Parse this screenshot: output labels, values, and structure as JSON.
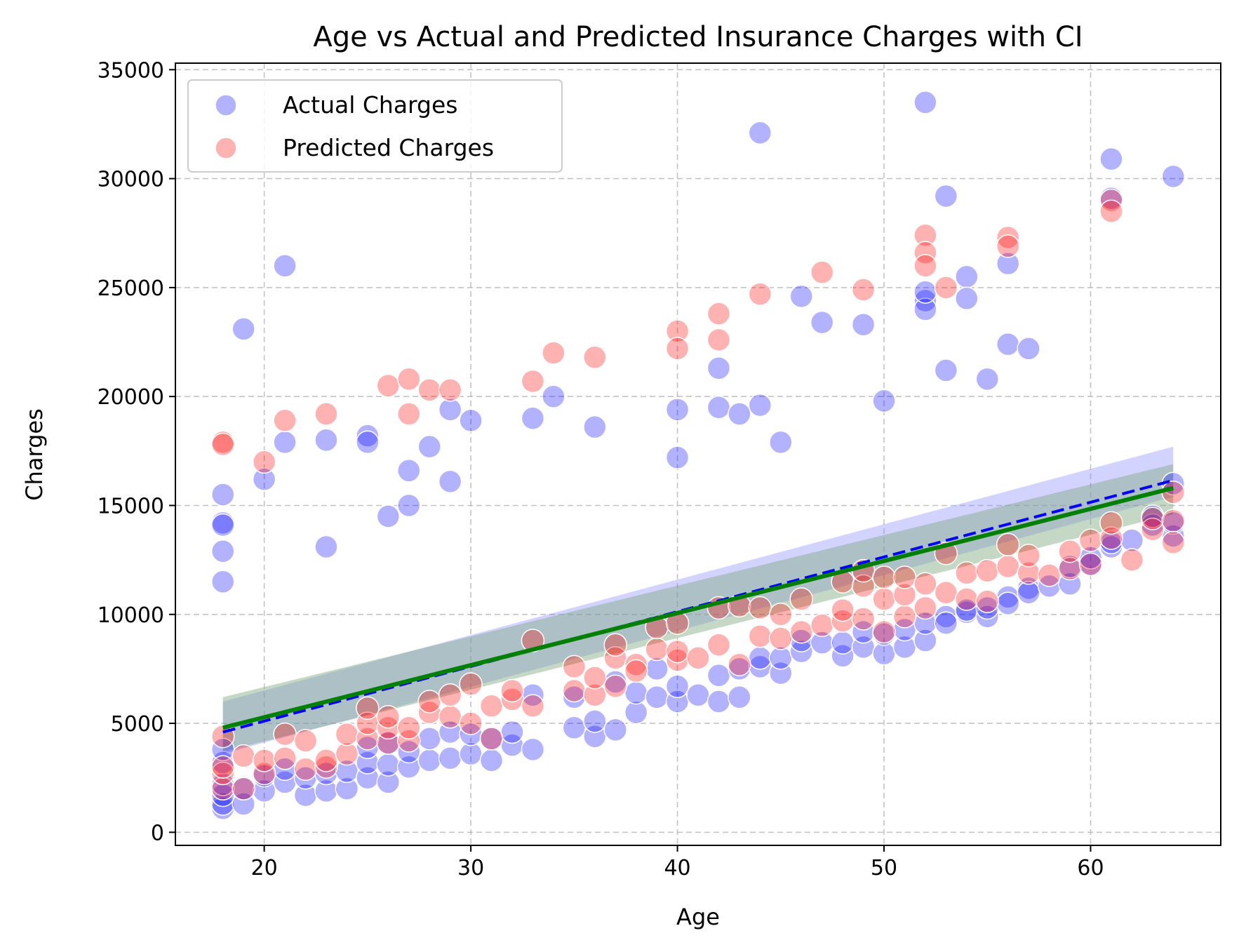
{
  "chart_data": {
    "type": "scatter",
    "title": "Age vs Actual and Predicted Insurance Charges with CI",
    "xlabel": "Age",
    "ylabel": "Charges",
    "xlim": [
      15.7,
      66.3
    ],
    "ylim": [
      -600,
      35300
    ],
    "xticks": [
      20,
      30,
      40,
      50,
      60
    ],
    "yticks": [
      0,
      5000,
      10000,
      15000,
      20000,
      25000,
      30000,
      35000
    ],
    "grid": true,
    "legend_position": "top-left",
    "colors": {
      "actual": "#0000ff",
      "predicted": "#ff0000",
      "actual_fit": "#0000ff",
      "predicted_fit": "#008000",
      "actual_ci": "#8080ff",
      "predicted_ci": "#90c890"
    },
    "series": [
      {
        "name": "Actual Charges",
        "kind": "points",
        "x": [
          18,
          18,
          18,
          18,
          18,
          18,
          18,
          19,
          21,
          20,
          21,
          23,
          23,
          25,
          25,
          26,
          27,
          27,
          28,
          29,
          29,
          30,
          33,
          34,
          36,
          40,
          40,
          42,
          42,
          43,
          44,
          44,
          45,
          46,
          47,
          49,
          50,
          52,
          52,
          52,
          52,
          53,
          53,
          54,
          54,
          55,
          56,
          56,
          57,
          61,
          61,
          64,
          64,
          18,
          18,
          18,
          18,
          19,
          19,
          20,
          20,
          21,
          21,
          22,
          22,
          23,
          23,
          24,
          24,
          25,
          25,
          25,
          26,
          26,
          26,
          27,
          27,
          28,
          28,
          29,
          29,
          30,
          30,
          31,
          31,
          32,
          32,
          33,
          33,
          35,
          35,
          36,
          36,
          37,
          37,
          38,
          38,
          39,
          39,
          40,
          40,
          41,
          42,
          42,
          43,
          43,
          44,
          44,
          45,
          45,
          46,
          46,
          47,
          48,
          48,
          49,
          49,
          50,
          50,
          51,
          51,
          52,
          52,
          53,
          53,
          54,
          54,
          55,
          55,
          56,
          56,
          57,
          57,
          58,
          59,
          59,
          60,
          60,
          61,
          61,
          62,
          63,
          63,
          64,
          64
        ],
        "y": [
          15500,
          14200,
          14100,
          12900,
          11500,
          1100,
          1300,
          23100,
          26000,
          16200,
          17900,
          18000,
          13100,
          18200,
          17900,
          14500,
          16600,
          15000,
          17700,
          19400,
          16100,
          18900,
          19000,
          20000,
          18600,
          19400,
          17200,
          21300,
          19500,
          19200,
          19600,
          32100,
          17900,
          24600,
          23400,
          23300,
          19800,
          33500,
          24400,
          24000,
          24800,
          29200,
          21200,
          25500,
          24500,
          20800,
          26100,
          22400,
          22200,
          30900,
          29100,
          30100,
          16000,
          1700,
          2200,
          3200,
          3800,
          1300,
          2000,
          1900,
          2600,
          2300,
          2900,
          1700,
          2500,
          1900,
          2700,
          2000,
          2800,
          2500,
          3200,
          3900,
          2300,
          3100,
          4100,
          3000,
          3700,
          3300,
          4300,
          3400,
          4600,
          3600,
          4500,
          3300,
          4300,
          4000,
          4600,
          3800,
          6300,
          4800,
          6200,
          4400,
          5100,
          4700,
          6900,
          5500,
          6400,
          6200,
          7500,
          6000,
          6700,
          6300,
          7200,
          6000,
          6200,
          7500,
          7600,
          8000,
          7300,
          8000,
          8300,
          8800,
          8700,
          8100,
          8700,
          8500,
          9200,
          8200,
          9100,
          8500,
          9300,
          8800,
          9600,
          9900,
          9600,
          10100,
          10200,
          9900,
          10300,
          10800,
          10500,
          11200,
          11000,
          11300,
          11400,
          12200,
          12300,
          12600,
          13100,
          13300,
          13400,
          14100,
          14500,
          13600,
          14200
        ]
      },
      {
        "name": "Predicted Charges",
        "kind": "points",
        "x": [
          18,
          18,
          21,
          20,
          23,
          26,
          27,
          27,
          28,
          29,
          33,
          34,
          36,
          40,
          40,
          42,
          42,
          44,
          47,
          49,
          52,
          52,
          52,
          53,
          56,
          56,
          61,
          61,
          18,
          18,
          18,
          18,
          19,
          19,
          20,
          20,
          21,
          21,
          22,
          22,
          23,
          23,
          24,
          24,
          25,
          25,
          25,
          26,
          26,
          26,
          27,
          27,
          28,
          28,
          29,
          29,
          30,
          30,
          31,
          31,
          32,
          32,
          33,
          33,
          35,
          35,
          36,
          36,
          37,
          37,
          37,
          38,
          38,
          39,
          39,
          40,
          40,
          40,
          41,
          42,
          42,
          43,
          43,
          44,
          44,
          45,
          45,
          46,
          46,
          47,
          48,
          48,
          48,
          49,
          49,
          49,
          50,
          50,
          50,
          51,
          51,
          51,
          52,
          52,
          53,
          53,
          54,
          54,
          55,
          55,
          56,
          56,
          57,
          57,
          58,
          59,
          59,
          60,
          60,
          61,
          61,
          62,
          63,
          63,
          64,
          64,
          64
        ],
        "y": [
          17900,
          17800,
          18900,
          17000,
          19200,
          20500,
          20800,
          19200,
          20300,
          20300,
          20700,
          22000,
          21800,
          23000,
          22200,
          23800,
          22600,
          24700,
          25700,
          24900,
          27400,
          26600,
          26000,
          25000,
          27300,
          26900,
          29000,
          28500,
          2000,
          2700,
          3000,
          4400,
          2000,
          3500,
          2700,
          3300,
          3400,
          4500,
          2900,
          4200,
          3000,
          3300,
          3600,
          4500,
          4300,
          5000,
          5700,
          4100,
          4800,
          5300,
          4200,
          4800,
          5500,
          6000,
          5300,
          6300,
          5000,
          6800,
          4300,
          5800,
          6100,
          6500,
          5800,
          8800,
          6500,
          7600,
          6300,
          7100,
          8000,
          8600,
          6700,
          7700,
          7400,
          8400,
          9400,
          7900,
          8300,
          9600,
          8000,
          8600,
          10300,
          7700,
          10400,
          9000,
          10300,
          8900,
          10000,
          9200,
          10700,
          9500,
          9700,
          10200,
          11500,
          9800,
          11300,
          12000,
          9200,
          10700,
          11700,
          9900,
          10900,
          11700,
          10300,
          11400,
          11000,
          12800,
          10700,
          11900,
          10600,
          12000,
          12200,
          13200,
          11900,
          12700,
          11800,
          12100,
          12900,
          12300,
          13400,
          13500,
          14200,
          12500,
          13900,
          14400,
          13300,
          14300,
          15600
        ]
      },
      {
        "name": "",
        "kind": "fit",
        "x": [
          18,
          64
        ],
        "y": [
          4600,
          16150
        ]
      },
      {
        "name": "",
        "kind": "fit",
        "x": [
          18,
          64
        ],
        "y": [
          4800,
          15800
        ]
      },
      {
        "name": "",
        "kind": "ci",
        "x": [
          18,
          64
        ],
        "upper": [
          6000,
          17700
        ],
        "lower": [
          3600,
          15400
        ]
      },
      {
        "name": "",
        "kind": "ci",
        "x": [
          18,
          64
        ],
        "upper": [
          6200,
          16900
        ],
        "lower": [
          3700,
          14600
        ]
      }
    ]
  }
}
